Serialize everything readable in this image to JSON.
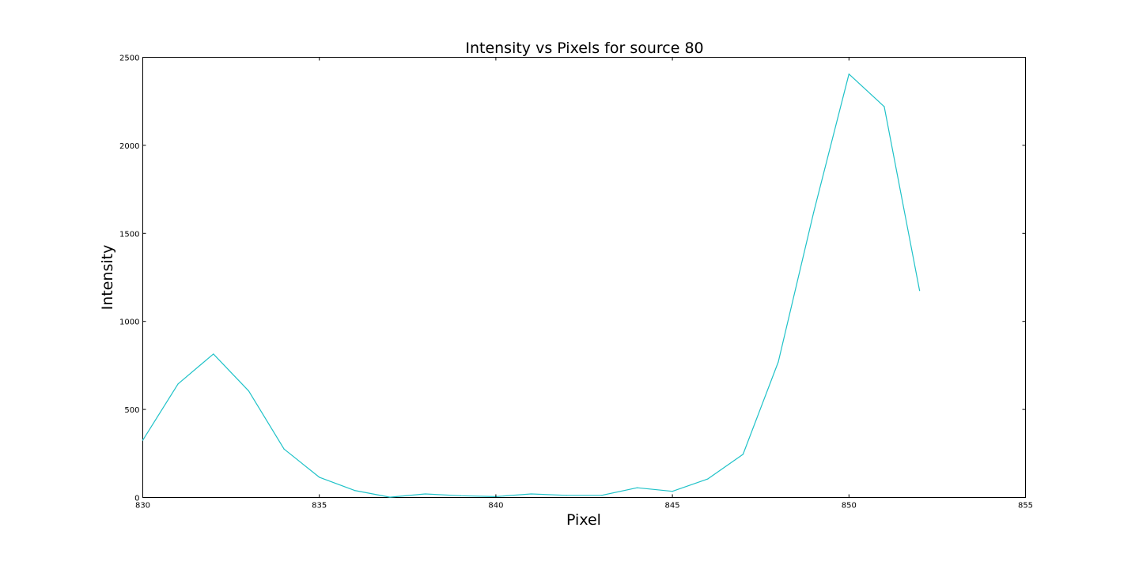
{
  "chart_data": {
    "type": "line",
    "title": "Intensity vs Pixels for source 80",
    "xlabel": "Pixel",
    "ylabel": "Intensity",
    "xlim": [
      830,
      855
    ],
    "ylim": [
      0,
      2500
    ],
    "xticks": [
      830,
      835,
      840,
      845,
      850,
      855
    ],
    "yticks": [
      0,
      500,
      1000,
      1500,
      2000,
      2500
    ],
    "grid": false,
    "legend": "none",
    "series": [
      {
        "color": "#1fc2c8",
        "x": [
          830,
          831,
          832,
          833,
          834,
          835,
          836,
          837,
          838,
          839,
          840,
          841,
          842,
          843,
          844,
          845,
          846,
          847,
          848,
          849,
          850,
          851,
          852
        ],
        "y": [
          325,
          645,
          815,
          605,
          275,
          115,
          40,
          2,
          20,
          10,
          5,
          20,
          12,
          12,
          55,
          35,
          105,
          245,
          770,
          1620,
          2405,
          2220,
          1175
        ]
      }
    ]
  }
}
